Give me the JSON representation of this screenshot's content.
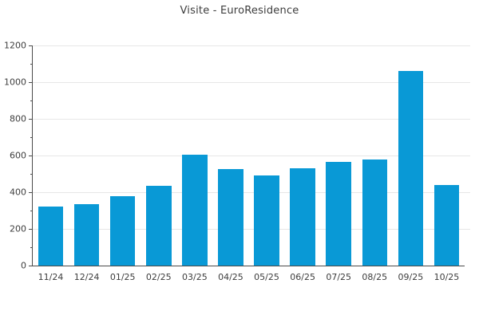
{
  "title": "Visite - EuroResidence",
  "colors": {
    "bar": "#0999d6",
    "grid": "#e7e7e7",
    "axis": "#4a4a4a",
    "text": "#3d3d3d",
    "background": "#ffffff"
  },
  "chart_data": {
    "type": "bar",
    "title": "Visite - EuroResidence",
    "categories": [
      "11/24",
      "12/24",
      "01/25",
      "02/25",
      "03/25",
      "04/25",
      "05/25",
      "06/25",
      "07/25",
      "08/25",
      "09/25",
      "10/25"
    ],
    "values": [
      320,
      335,
      380,
      435,
      605,
      525,
      490,
      530,
      565,
      580,
      1060,
      440
    ],
    "xlabel": "",
    "ylabel": "",
    "ylim": [
      0,
      1200
    ],
    "yticks": [
      0,
      200,
      400,
      600,
      800,
      1000,
      1200
    ],
    "minor_ytick_step": 100,
    "bar_width_ratio": 0.7,
    "grid": true,
    "legend": "none"
  }
}
